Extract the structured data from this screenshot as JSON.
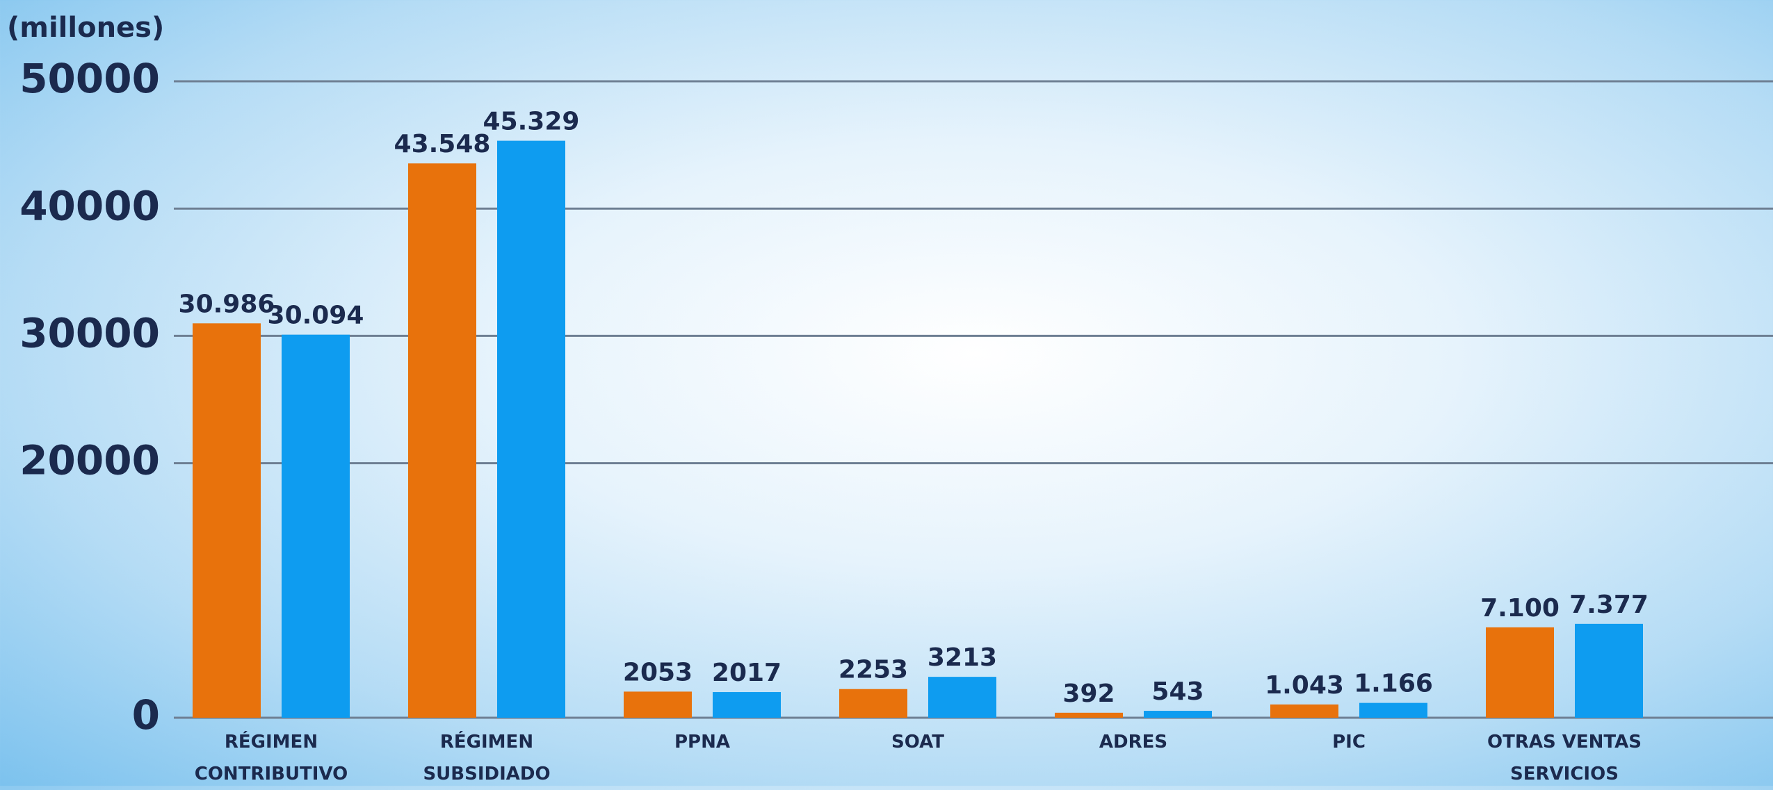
{
  "chart_data": {
    "type": "bar",
    "y_label": "(millones)",
    "categories": [
      "RÉGIMEN CONTRIBUTIVO",
      "RÉGIMEN SUBSIDIADO",
      "PPNA",
      "SOAT",
      "ADRES",
      "PIC",
      "OTRAS VENTAS SERVICIOS"
    ],
    "series": [
      {
        "color": "#e8720c",
        "values": [
          30986,
          43548,
          2053,
          2253,
          392,
          1043,
          7100
        ],
        "value_labels": [
          "30.986",
          "43.548",
          "2053",
          "2253",
          "392",
          "1.043",
          "7.100"
        ]
      },
      {
        "color": "#0e9cf0",
        "values": [
          30094,
          45329,
          2017,
          3213,
          543,
          1166,
          7377
        ],
        "value_labels": [
          "30.094",
          "45.329",
          "2017",
          "3213",
          "543",
          "1.166",
          "7.377"
        ]
      }
    ],
    "ylim": [
      0,
      50000
    ],
    "yticks": [
      0,
      20000,
      30000,
      40000,
      50000
    ],
    "grid": true
  }
}
